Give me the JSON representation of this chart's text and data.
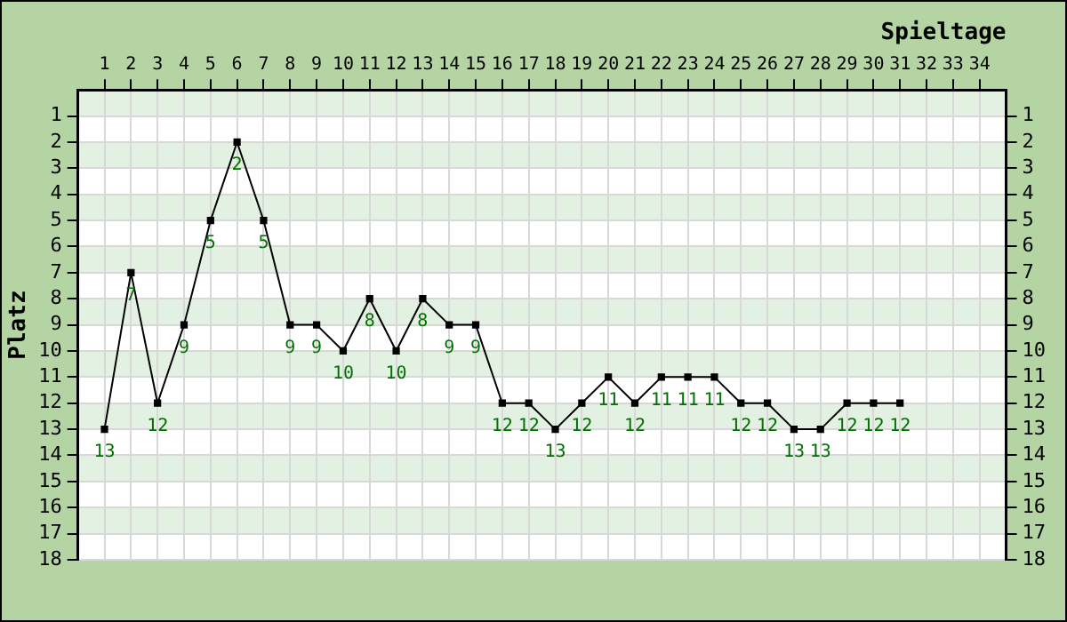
{
  "chart_data": {
    "type": "line",
    "xlabel": "Spieltage",
    "ylabel": "Platz",
    "x": [
      1,
      2,
      3,
      4,
      5,
      6,
      7,
      8,
      9,
      10,
      11,
      12,
      13,
      14,
      15,
      16,
      17,
      18,
      19,
      20,
      21,
      22,
      23,
      24,
      25,
      26,
      27,
      28,
      29,
      30,
      31
    ],
    "series": [
      {
        "color": "#000000",
        "values": [
          13,
          7,
          12,
          9,
          5,
          2,
          5,
          9,
          9,
          10,
          8,
          10,
          8,
          9,
          9,
          12,
          12,
          13,
          12,
          11,
          12,
          11,
          11,
          11,
          12,
          12,
          13,
          13,
          12,
          12,
          12
        ]
      }
    ],
    "xlim": [
      0,
      35
    ],
    "xticks": [
      1,
      2,
      3,
      4,
      5,
      6,
      7,
      8,
      9,
      10,
      11,
      12,
      13,
      14,
      15,
      16,
      17,
      18,
      19,
      20,
      21,
      22,
      23,
      24,
      25,
      26,
      27,
      28,
      29,
      30,
      31,
      32,
      33,
      34
    ],
    "ylim": [
      18,
      0
    ],
    "yticks": [
      1,
      2,
      3,
      4,
      5,
      6,
      7,
      8,
      9,
      10,
      11,
      12,
      13,
      14,
      15,
      16,
      17,
      18
    ],
    "y2lim": [
      18,
      0
    ],
    "y2ticks": [
      1,
      2,
      3,
      4,
      5,
      6,
      7,
      8,
      9,
      10,
      11,
      12,
      13,
      14,
      15,
      16,
      17,
      18
    ],
    "bands": [
      {
        "axis": "y",
        "from": 0,
        "to": 1,
        "color": "#e3f1e3"
      },
      {
        "axis": "y",
        "from": 2,
        "to": 3,
        "color": "#e3f1e3"
      },
      {
        "axis": "y",
        "from": 4,
        "to": 5,
        "color": "#e3f1e3"
      },
      {
        "axis": "y",
        "from": 6,
        "to": 7,
        "color": "#e3f1e3"
      },
      {
        "axis": "y",
        "from": 8,
        "to": 9,
        "color": "#e3f1e3"
      },
      {
        "axis": "y",
        "from": 10,
        "to": 11,
        "color": "#e3f1e3"
      },
      {
        "axis": "y",
        "from": 12,
        "to": 13,
        "color": "#e3f1e3"
      },
      {
        "axis": "y",
        "from": 14,
        "to": 15,
        "color": "#e3f1e3"
      },
      {
        "axis": "y",
        "from": 16,
        "to": 17,
        "color": "#e3f1e3"
      }
    ],
    "grid": true,
    "legend": false,
    "marker": "square",
    "line_style": "solid",
    "data_labels": true
  }
}
